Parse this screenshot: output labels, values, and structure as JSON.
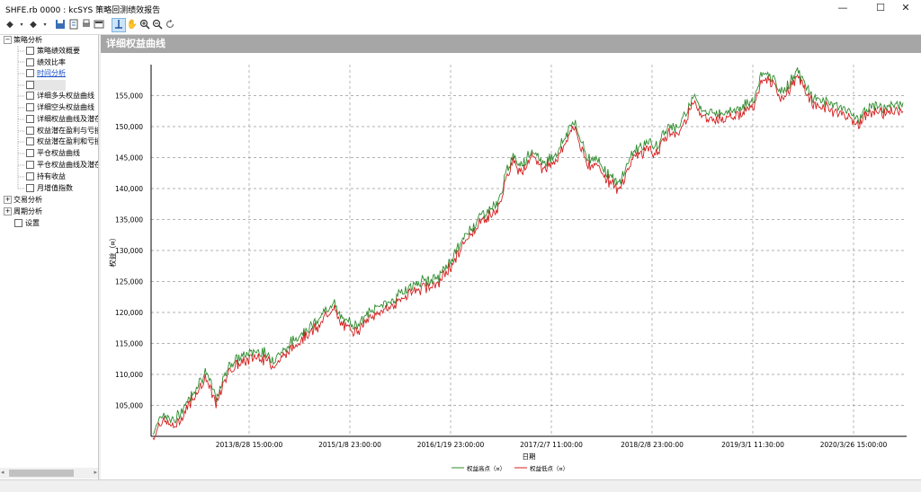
{
  "window": {
    "title": "SHFE.rb 0000 : kcSYS 策略回测绩效报告",
    "minimize": "—",
    "maximize": "☐",
    "close": "✕"
  },
  "toolbar": {
    "icons": [
      "back-icon",
      "dropdown-icon",
      "forward-icon",
      "dropdown-icon",
      "save-icon",
      "export-icon",
      "print-icon",
      "report-icon",
      "pointer-icon",
      "pan-icon",
      "zoom-in-icon",
      "zoom-out-icon",
      "refresh-icon"
    ]
  },
  "tree": {
    "root1": "策略分析",
    "items": [
      "策略绩效概要",
      "绩效比率",
      "时间分析",
      "",
      "详细多头权益曲线",
      "详细空头权益曲线",
      "详细权益曲线及潜在",
      "权益潜在盈利与亏损",
      "权益潜在盈利和亏损",
      "平仓权益曲线",
      "平仓权益曲线及潜在",
      "持有收益",
      "月增值指数"
    ],
    "root2": "交易分析",
    "root3": "周期分析",
    "root4": "设置"
  },
  "chart_header": "详细权益曲线",
  "chart_data": {
    "type": "line",
    "ylabel": "权益（¤）",
    "xlabel": "日期",
    "ylim": [
      100000,
      160000
    ],
    "yticks": [
      105000,
      110000,
      115000,
      120000,
      125000,
      130000,
      135000,
      140000,
      145000,
      150000,
      155000
    ],
    "ytick_labels": [
      "105,000",
      "110,000",
      "115,000",
      "120,000",
      "125,000",
      "130,000",
      "135,000",
      "140,000",
      "145,000",
      "150,000",
      "155,000"
    ],
    "xtick_labels": [
      "2013/8/28 15:00:00",
      "2015/1/8 23:00:00",
      "2016/1/19 23:00:00",
      "2017/2/7 11:00:00",
      "2018/2/8 23:00:00",
      "2019/3/1 11:30:00",
      "2020/3/26 15:00:00"
    ],
    "grid": true,
    "legend_position": "bottom",
    "series": [
      {
        "name": "权益高点（¤）",
        "color": "#2e8b2e"
      },
      {
        "name": "权益低点（¤）",
        "color": "#d42020"
      }
    ],
    "x_fraction": [
      0,
      0.01,
      0.03,
      0.05,
      0.07,
      0.085,
      0.1,
      0.12,
      0.14,
      0.16,
      0.18,
      0.2,
      0.22,
      0.24,
      0.25,
      0.27,
      0.29,
      0.3,
      0.32,
      0.34,
      0.36,
      0.38,
      0.4,
      0.42,
      0.44,
      0.46,
      0.47,
      0.48,
      0.49,
      0.5,
      0.51,
      0.52,
      0.54,
      0.56,
      0.58,
      0.595,
      0.6,
      0.62,
      0.64,
      0.66,
      0.67,
      0.69,
      0.7,
      0.72,
      0.74,
      0.76,
      0.78,
      0.8,
      0.81,
      0.82,
      0.84,
      0.86,
      0.88,
      0.9,
      0.91,
      0.92,
      0.94,
      0.96,
      0.98,
      1.0
    ],
    "values": [
      100000,
      103000,
      102000,
      106000,
      110000,
      105500,
      111000,
      112500,
      113500,
      112000,
      114000,
      116500,
      118000,
      121500,
      118500,
      117500,
      119500,
      120500,
      121500,
      123500,
      124500,
      125000,
      128500,
      132500,
      135500,
      137000,
      141500,
      145000,
      143500,
      144500,
      145500,
      143500,
      145500,
      150500,
      144500,
      144000,
      143000,
      140000,
      145500,
      147000,
      146000,
      150000,
      149000,
      154500,
      151500,
      152000,
      152500,
      153500,
      157500,
      158000,
      155000,
      158500,
      154000,
      153500,
      153000,
      152500,
      150800,
      153000,
      152500,
      153500
    ]
  }
}
